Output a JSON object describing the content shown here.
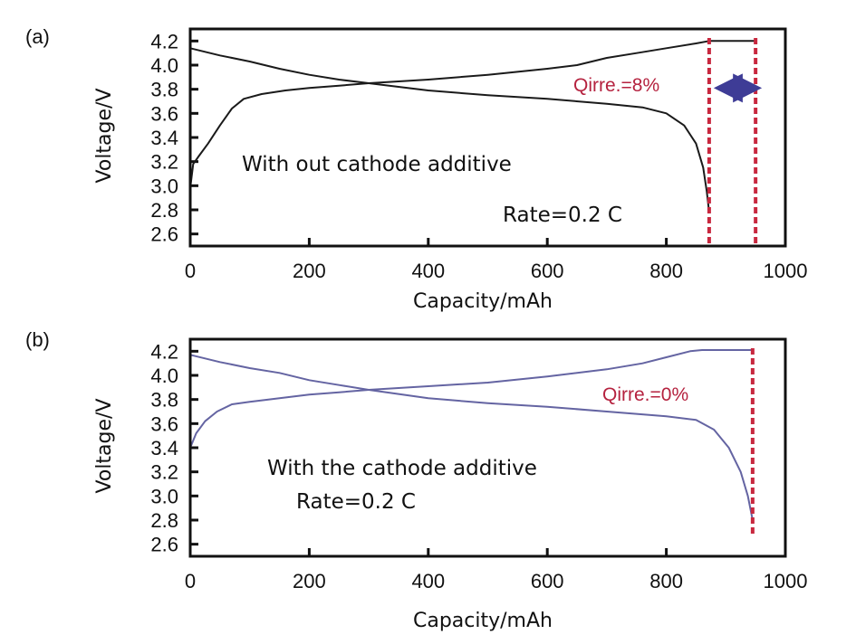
{
  "chart_data": [
    {
      "type": "line",
      "panel_label": "(a)",
      "title": "",
      "xlabel": "Capacity/mAh",
      "ylabel": "Voltage/V",
      "xlim": [
        0,
        1000
      ],
      "ylim": [
        2.5,
        4.3
      ],
      "x_ticks": [
        "0",
        "200",
        "400",
        "600",
        "800",
        "1000"
      ],
      "y_ticks": [
        "4.2",
        "4.0",
        "3.8",
        "3.6",
        "3.4",
        "3.2",
        "3.0",
        "2.8",
        "2.6"
      ],
      "grid": false,
      "line_color": "#1a1a1a",
      "series": [
        {
          "name": "charge",
          "x": [
            0,
            5,
            15,
            30,
            50,
            70,
            90,
            120,
            160,
            200,
            250,
            300,
            400,
            500,
            600,
            650,
            700,
            750,
            800,
            850,
            872,
            950
          ],
          "y": [
            2.98,
            3.18,
            3.25,
            3.35,
            3.5,
            3.64,
            3.72,
            3.76,
            3.79,
            3.81,
            3.83,
            3.85,
            3.88,
            3.92,
            3.97,
            4.0,
            4.06,
            4.1,
            4.14,
            4.18,
            4.2,
            4.2
          ]
        },
        {
          "name": "discharge",
          "x": [
            0,
            50,
            100,
            150,
            200,
            250,
            300,
            400,
            500,
            600,
            700,
            760,
            800,
            830,
            850,
            862,
            868,
            872
          ],
          "y": [
            4.14,
            4.08,
            4.03,
            3.97,
            3.92,
            3.88,
            3.85,
            3.79,
            3.75,
            3.72,
            3.68,
            3.65,
            3.6,
            3.5,
            3.35,
            3.15,
            2.95,
            2.78
          ]
        }
      ],
      "annotations": {
        "condition": "With out cathode additive",
        "rate": "Rate=0.2 C",
        "qirre": "Qirre.=8%"
      },
      "markers": {
        "dashed_lines_x": [
          872,
          950
        ],
        "arrow_between": [
          872,
          950
        ],
        "arrow_y": 3.81,
        "dashed_color": "#c8283f",
        "arrow_color": "#3e3c96"
      }
    },
    {
      "type": "line",
      "panel_label": "(b)",
      "title": "",
      "xlabel": "Capacity/mAh",
      "ylabel": "Voltage/V",
      "xlim": [
        0,
        1000
      ],
      "ylim": [
        2.5,
        4.3
      ],
      "x_ticks": [
        "0",
        "200",
        "400",
        "600",
        "800",
        "1000"
      ],
      "y_ticks": [
        "4.2",
        "4.0",
        "3.8",
        "3.6",
        "3.4",
        "3.2",
        "3.0",
        "2.8",
        "2.6"
      ],
      "grid": false,
      "line_color": "#6464a2",
      "series": [
        {
          "name": "charge",
          "x": [
            0,
            10,
            25,
            45,
            70,
            100,
            150,
            200,
            250,
            300,
            400,
            500,
            600,
            700,
            760,
            800,
            840,
            860,
            945
          ],
          "y": [
            3.4,
            3.52,
            3.62,
            3.7,
            3.76,
            3.78,
            3.81,
            3.84,
            3.86,
            3.88,
            3.91,
            3.94,
            3.99,
            4.05,
            4.1,
            4.15,
            4.2,
            4.21,
            4.21
          ]
        },
        {
          "name": "discharge",
          "x": [
            0,
            50,
            100,
            150,
            200,
            250,
            300,
            400,
            500,
            600,
            700,
            800,
            850,
            880,
            905,
            925,
            937,
            945
          ],
          "y": [
            4.17,
            4.11,
            4.06,
            4.02,
            3.96,
            3.92,
            3.88,
            3.81,
            3.77,
            3.74,
            3.7,
            3.66,
            3.63,
            3.55,
            3.4,
            3.2,
            3.0,
            2.8
          ]
        }
      ],
      "annotations": {
        "condition": "With the cathode additive",
        "rate": "Rate=0.2 C",
        "qirre": "Qirre.=0%"
      },
      "markers": {
        "dashed_lines_x": [
          945
        ],
        "dashed_color": "#c8283f"
      }
    }
  ]
}
